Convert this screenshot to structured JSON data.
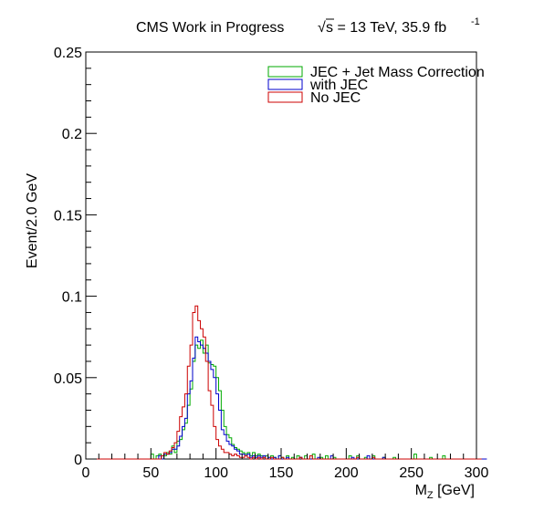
{
  "chart_data": {
    "type": "histogram",
    "title": {
      "label": "CMS Work in Progress",
      "sqrt_symbol": "√",
      "energy": "s = 13 TeV, 35.9 fb",
      "lumi_exponent": "-1"
    },
    "xlabel": {
      "main": "M",
      "sub": "Z",
      "unit": " [GeV]"
    },
    "ylabel": "Event/2.0 GeV",
    "xlim": [
      0,
      300
    ],
    "ylim": [
      0,
      0.25
    ],
    "x_ticks": [
      "0",
      "50",
      "100",
      "150",
      "200",
      "250",
      "300"
    ],
    "y_ticks": [
      "0",
      "0.05",
      "0.1",
      "0.15",
      "0.2",
      "0.25"
    ],
    "bin_width": 2,
    "bin_start": 0,
    "legend_position": "top-right",
    "grid": false,
    "series": [
      {
        "name": "JEC + Jet Mass Correction",
        "color": "#00aa00",
        "values": [
          0,
          0,
          0,
          0,
          0,
          0,
          0,
          0,
          0,
          0,
          0,
          0,
          0,
          0,
          0,
          0,
          0,
          0,
          0,
          0,
          0,
          0,
          0,
          0,
          0,
          0.003,
          0,
          0.002,
          0.003,
          0,
          0.002,
          0.004,
          0.003,
          0.008,
          0.004,
          0.011,
          0.012,
          0.018,
          0.022,
          0.033,
          0.043,
          0.06,
          0.07,
          0.068,
          0.073,
          0.065,
          0.07,
          0.059,
          0.058,
          0.057,
          0.05,
          0.042,
          0.03,
          0.02,
          0.015,
          0.013,
          0.009,
          0.007,
          0.006,
          0.005,
          0.004,
          0.003,
          0.004,
          0.002,
          0.004,
          0.002,
          0.003,
          0.002,
          0.001,
          0.002,
          0,
          0.002,
          0.001,
          0,
          0.002,
          0.001,
          0,
          0.002,
          0,
          0.001,
          0,
          0.002,
          0.001,
          0,
          0.002,
          0,
          0,
          0.003,
          0,
          0,
          0.001,
          0,
          0.002,
          0,
          0,
          0.001,
          0,
          0,
          0,
          0,
          0,
          0.002,
          0,
          0,
          0.002,
          0,
          0,
          0.001,
          0,
          0,
          0.002,
          0,
          0,
          0,
          0.001,
          0,
          0,
          0,
          0.001,
          0,
          0,
          0,
          0,
          0,
          0,
          0,
          0.003,
          0,
          0,
          0,
          0,
          0,
          0.001,
          0,
          0,
          0,
          0,
          0.002,
          0,
          0,
          0,
          0,
          0,
          0,
          0,
          0,
          0,
          0,
          0,
          0,
          0,
          0,
          0
        ]
      },
      {
        "name": "with JEC",
        "color": "#0000cc",
        "values": [
          0,
          0,
          0,
          0,
          0,
          0,
          0,
          0,
          0,
          0,
          0,
          0,
          0,
          0,
          0,
          0,
          0,
          0,
          0,
          0,
          0,
          0,
          0,
          0,
          0,
          0,
          0,
          0,
          0.002,
          0,
          0.003,
          0.003,
          0.004,
          0.006,
          0.006,
          0.008,
          0.014,
          0.02,
          0.025,
          0.04,
          0.048,
          0.062,
          0.075,
          0.072,
          0.07,
          0.068,
          0.065,
          0.06,
          0.055,
          0.05,
          0.04,
          0.03,
          0.018,
          0.015,
          0.011,
          0.009,
          0.008,
          0.006,
          0.005,
          0.003,
          0.003,
          0.002,
          0.003,
          0.001,
          0.002,
          0.001,
          0.002,
          0.001,
          0.002,
          0,
          0.001,
          0,
          0.001,
          0,
          0.002,
          0,
          0,
          0.001,
          0,
          0,
          0,
          0,
          0.001,
          0,
          0,
          0,
          0,
          0,
          0,
          0.001,
          0,
          0,
          0,
          0,
          0.002,
          0,
          0,
          0,
          0,
          0,
          0,
          0,
          0.001,
          0,
          0,
          0,
          0,
          0,
          0.002,
          0,
          0,
          0,
          0,
          0,
          0.001,
          0,
          0,
          0,
          0,
          0,
          0,
          0,
          0,
          0,
          0,
          0,
          0,
          0,
          0,
          0,
          0,
          0,
          0,
          0,
          0,
          0,
          0,
          0,
          0,
          0,
          0,
          0,
          0,
          0,
          0,
          0,
          0,
          0,
          0,
          0,
          0,
          0,
          0,
          0
        ]
      },
      {
        "name": "No JEC",
        "color": "#cc0000",
        "values": [
          0,
          0,
          0,
          0,
          0,
          0,
          0,
          0,
          0,
          0,
          0,
          0,
          0,
          0,
          0,
          0,
          0,
          0,
          0,
          0,
          0,
          0,
          0,
          0,
          0,
          0,
          0,
          0,
          0,
          0.002,
          0.004,
          0.003,
          0.005,
          0.007,
          0.01,
          0.017,
          0.026,
          0.032,
          0.04,
          0.057,
          0.07,
          0.09,
          0.094,
          0.085,
          0.08,
          0.075,
          0.06,
          0.042,
          0.033,
          0.02,
          0.012,
          0.008,
          0.006,
          0.004,
          0.004,
          0.003,
          0.002,
          0.003,
          0.002,
          0.001,
          0.001,
          0.002,
          0.001,
          0,
          0.001,
          0,
          0.001,
          0,
          0.001,
          0,
          0,
          0.001,
          0,
          0,
          0,
          0.001,
          0,
          0,
          0,
          0,
          0,
          0,
          0.001,
          0,
          0,
          0,
          0.002,
          0,
          0,
          0,
          0,
          0,
          0,
          0,
          0,
          0,
          0,
          0,
          0,
          0,
          0,
          0,
          0,
          0,
          0.001,
          0,
          0,
          0,
          0,
          0,
          0.001,
          0,
          0,
          0,
          0,
          0,
          0,
          0,
          0,
          0,
          0,
          0,
          0,
          0,
          0,
          0,
          0,
          0,
          0,
          0,
          0,
          0,
          0,
          0,
          0,
          0,
          0,
          0,
          0,
          0,
          0,
          0,
          0,
          0,
          0,
          0,
          0,
          0,
          0,
          0,
          0,
          0
        ]
      }
    ]
  }
}
